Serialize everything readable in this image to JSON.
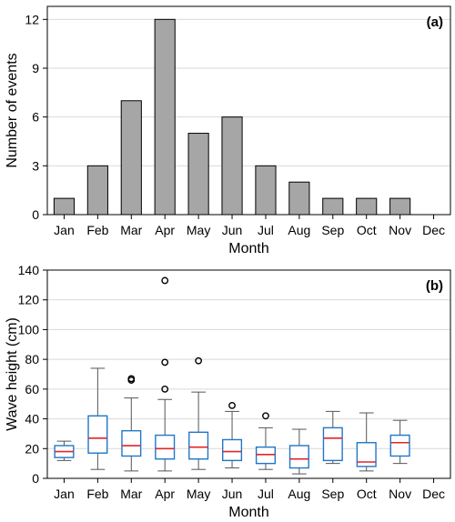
{
  "chart_data": [
    {
      "type": "bar",
      "panel_label": "(a)",
      "categories": [
        "Jan",
        "Feb",
        "Mar",
        "Apr",
        "May",
        "Jun",
        "Jul",
        "Aug",
        "Sep",
        "Oct",
        "Nov",
        "Dec"
      ],
      "values": [
        1,
        3,
        7,
        12,
        5,
        6,
        3,
        2,
        1,
        1,
        1,
        0
      ],
      "xlabel": "Month",
      "ylabel": "Number of events",
      "ylim": [
        0,
        12.8
      ],
      "yticks": [
        0,
        3,
        6,
        9,
        12
      ],
      "grid": "horizontal",
      "colors": {
        "bar_fill": "#a6a6a6",
        "bar_stroke": "#000000",
        "grid": "#d9d9d9"
      }
    },
    {
      "type": "box",
      "panel_label": "(b)",
      "categories": [
        "Jan",
        "Feb",
        "Mar",
        "Apr",
        "May",
        "Jun",
        "Jul",
        "Aug",
        "Sep",
        "Oct",
        "Nov",
        "Dec"
      ],
      "boxes": [
        {
          "q1": 14,
          "median": 18,
          "q3": 22,
          "whisker_low": 12,
          "whisker_high": 25,
          "outliers": []
        },
        {
          "q1": 17,
          "median": 27,
          "q3": 42,
          "whisker_low": 6,
          "whisker_high": 74,
          "outliers": []
        },
        {
          "q1": 15,
          "median": 22,
          "q3": 32,
          "whisker_low": 5,
          "whisker_high": 54,
          "outliers": [
            66,
            67
          ]
        },
        {
          "q1": 13,
          "median": 20,
          "q3": 29,
          "whisker_low": 5,
          "whisker_high": 53,
          "outliers": [
            60,
            78,
            133
          ]
        },
        {
          "q1": 13,
          "median": 21,
          "q3": 31,
          "whisker_low": 6,
          "whisker_high": 58,
          "outliers": [
            79
          ]
        },
        {
          "q1": 12,
          "median": 18,
          "q3": 26,
          "whisker_low": 7,
          "whisker_high": 45,
          "outliers": [
            49
          ]
        },
        {
          "q1": 10,
          "median": 16,
          "q3": 21,
          "whisker_low": 6,
          "whisker_high": 34,
          "outliers": [
            42
          ]
        },
        {
          "q1": 7,
          "median": 13,
          "q3": 22,
          "whisker_low": 3,
          "whisker_high": 33,
          "outliers": []
        },
        {
          "q1": 12,
          "median": 27,
          "q3": 34,
          "whisker_low": 10,
          "whisker_high": 45,
          "outliers": []
        },
        {
          "q1": 8,
          "median": 11,
          "q3": 24,
          "whisker_low": 5,
          "whisker_high": 44,
          "outliers": []
        },
        {
          "q1": 15,
          "median": 24,
          "q3": 29,
          "whisker_low": 10,
          "whisker_high": 39,
          "outliers": []
        },
        null
      ],
      "xlabel": "Month",
      "ylabel": "Wave height (cm)",
      "ylim": [
        0,
        140
      ],
      "yticks": [
        0,
        20,
        40,
        60,
        80,
        100,
        120,
        140
      ],
      "grid": "horizontal",
      "colors": {
        "box_stroke": "#1f77c8",
        "median": "#e3242b",
        "whisker": "#555555",
        "outlier": "#000000",
        "grid": "#d9d9d9"
      }
    }
  ]
}
